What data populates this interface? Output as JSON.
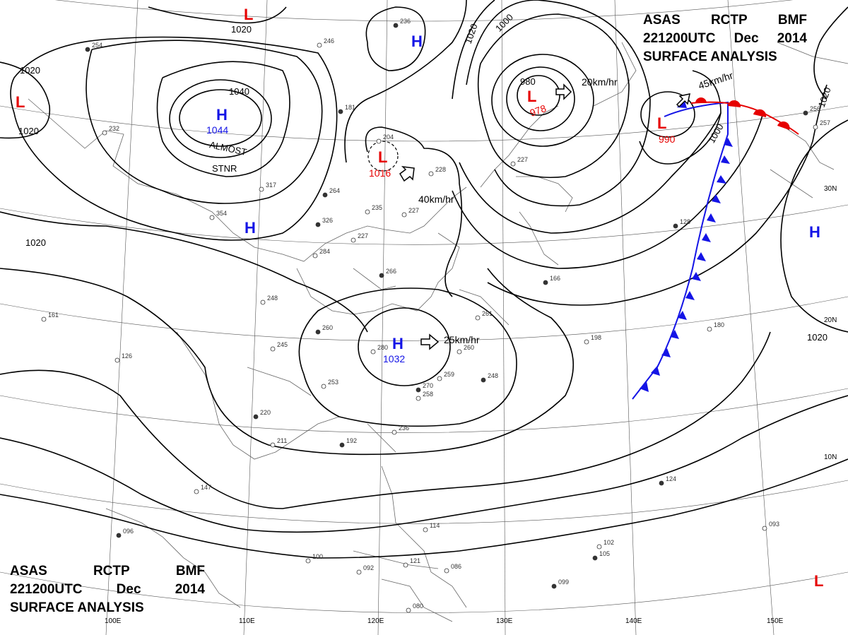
{
  "header": {
    "line1": [
      "ASAS",
      "RCTP",
      "BMF"
    ],
    "line2": [
      "221200UTC",
      "Dec",
      "2014"
    ],
    "line3": "SURFACE ANALYSIS"
  },
  "colors": {
    "high": "#1414e6",
    "low": "#e60000",
    "cold_front": "#1414e6",
    "warm_front": "#e60000",
    "isobar": "#000000"
  },
  "centers": [
    {
      "type": "H",
      "value": "1044",
      "name": "high-1044"
    },
    {
      "type": "H",
      "value": "1032",
      "name": "high-1032"
    },
    {
      "type": "H",
      "value": "",
      "name": "high-north"
    },
    {
      "type": "H",
      "value": "",
      "name": "high-west"
    },
    {
      "type": "H",
      "value": "",
      "name": "high-east"
    },
    {
      "type": "L",
      "value": "1016",
      "name": "low-1016"
    },
    {
      "type": "L",
      "value": "978",
      "name": "low-978"
    },
    {
      "type": "L",
      "value": "990",
      "name": "low-990"
    },
    {
      "type": "L",
      "value": "",
      "name": "low-northwest"
    },
    {
      "type": "L",
      "value": "",
      "name": "low-north"
    },
    {
      "type": "L",
      "value": "",
      "name": "low-southeast"
    }
  ],
  "motions": [
    {
      "speed": "20km/hr",
      "name": "motion-low-978"
    },
    {
      "speed": "45km/hr",
      "name": "motion-low-990"
    },
    {
      "speed": "40km/hr",
      "name": "motion-low-1016"
    },
    {
      "speed": "25km/hr",
      "name": "motion-high-1032"
    }
  ],
  "notes": {
    "almost": "ALMOST",
    "stnr": "STNR"
  },
  "isobar_labels": [
    "1020",
    "1020",
    "1020",
    "1040",
    "1020",
    "1020",
    "1000",
    "980",
    "1000",
    "1020",
    "1020"
  ],
  "latitude_labels": [
    "30N",
    "20N",
    "10N"
  ],
  "longitude_labels": [
    "100E",
    "110E",
    "120E",
    "130E",
    "140E",
    "150E"
  ],
  "station_obs": [
    "254",
    "232",
    "246",
    "181",
    "204",
    "228",
    "236",
    "235",
    "227",
    "264",
    "317",
    "354",
    "326",
    "284",
    "227",
    "266",
    "248",
    "245",
    "260",
    "280",
    "253",
    "220",
    "211",
    "147",
    "192",
    "236",
    "258",
    "270",
    "259",
    "260",
    "248",
    "261",
    "227",
    "166",
    "198",
    "180",
    "124",
    "114",
    "121",
    "096",
    "100",
    "092",
    "099",
    "093",
    "102",
    "105",
    "080",
    "086",
    "128",
    "161",
    "126",
    "256",
    "257"
  ]
}
